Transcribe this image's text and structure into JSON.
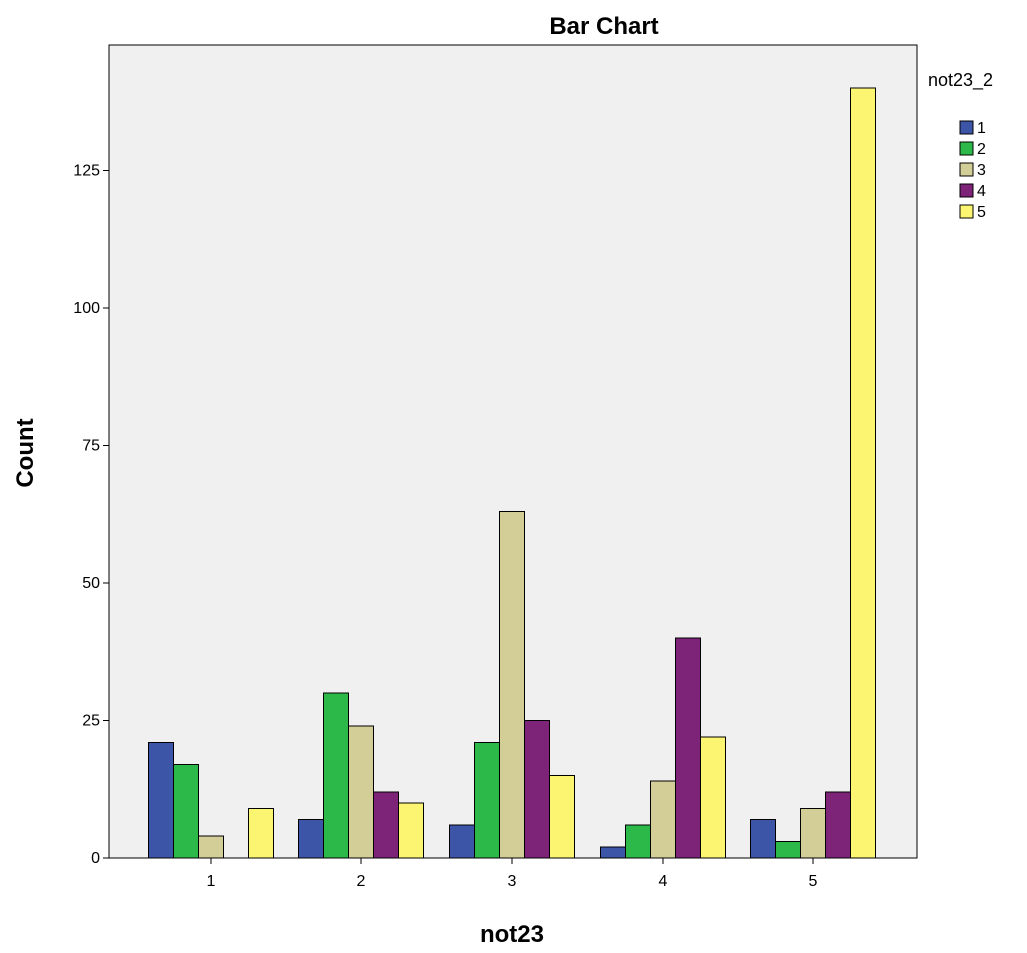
{
  "chart_data": {
    "type": "bar",
    "title": "Bar Chart",
    "xlabel": "not23",
    "ylabel": "Count",
    "categories": [
      "1",
      "2",
      "3",
      "4",
      "5"
    ],
    "legend_title": "not23_2",
    "legend_position": "top-right",
    "grid": false,
    "ylim": [
      0,
      145
    ],
    "yticks": [
      0,
      25,
      50,
      75,
      100,
      125
    ],
    "series": [
      {
        "name": "1",
        "color": "#3d55a6",
        "values": [
          21,
          7,
          6,
          2,
          7
        ]
      },
      {
        "name": "2",
        "color": "#2db84a",
        "values": [
          17,
          30,
          21,
          6,
          3
        ]
      },
      {
        "name": "3",
        "color": "#d3cd98",
        "values": [
          4,
          24,
          63,
          14,
          9
        ]
      },
      {
        "name": "4",
        "color": "#7d2478",
        "values": [
          0,
          12,
          25,
          40,
          12
        ]
      },
      {
        "name": "5",
        "color": "#fbf571",
        "values": [
          9,
          10,
          15,
          22,
          140
        ]
      }
    ],
    "plot_background": "#f0f0f0"
  }
}
